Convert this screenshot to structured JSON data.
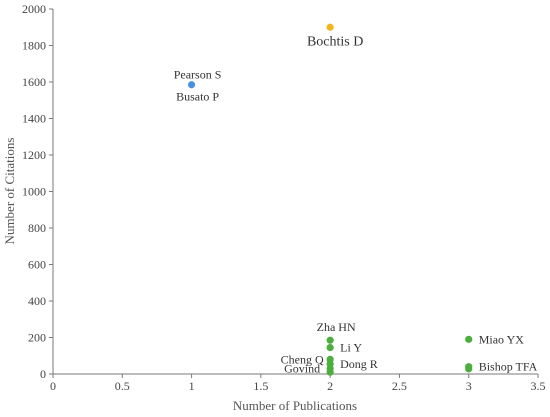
{
  "chart_data": {
    "type": "scatter",
    "xlabel": "Number of Publications",
    "ylabel": "Number of Citations",
    "xlim": [
      0,
      3.5
    ],
    "ylim": [
      0,
      2000
    ],
    "xticks": [
      0,
      0.5,
      1,
      1.5,
      2,
      2.5,
      3,
      3.5
    ],
    "xtick_labels": [
      "0",
      "0.5",
      "1",
      "1.5",
      "2",
      "2.5",
      "3",
      "3.5"
    ],
    "yticks": [
      0,
      200,
      400,
      600,
      800,
      1000,
      1200,
      1400,
      1600,
      1800,
      2000
    ],
    "ytick_labels": [
      "0",
      "200",
      "400",
      "600",
      "800",
      "1000",
      "1200",
      "1400",
      "1600",
      "1800",
      "2000"
    ],
    "grid": false,
    "legend": false,
    "colors": {
      "orange": "#f2b51c",
      "blue": "#4a90e2",
      "green": "#4caf3d"
    },
    "points": [
      {
        "x": 2,
        "y": 1900,
        "color": "orange",
        "labels": [
          "Bochtis D"
        ],
        "label_pos": "below",
        "big": true
      },
      {
        "x": 1,
        "y": 1585,
        "color": "blue",
        "labels": [
          "Pearson S",
          "Busato P"
        ],
        "label_pos": "above-below"
      },
      {
        "x": 2,
        "y": 185,
        "color": "green",
        "labels": [
          "Zha HN"
        ],
        "label_pos": "above"
      },
      {
        "x": 2,
        "y": 145,
        "color": "green",
        "labels": [
          "Li Y"
        ],
        "label_pos": "right"
      },
      {
        "x": 2,
        "y": 80,
        "color": "green",
        "labels": [
          "Cheng Q"
        ],
        "label_pos": "left"
      },
      {
        "x": 2,
        "y": 55,
        "color": "green",
        "labels": [
          "Dong R"
        ],
        "label_pos": "right"
      },
      {
        "x": 2,
        "y": 30,
        "color": "green",
        "labels": [
          "Govind"
        ],
        "label_pos": "left"
      },
      {
        "x": 2,
        "y": 10,
        "color": "green",
        "labels": [],
        "label_pos": "none"
      },
      {
        "x": 3,
        "y": 190,
        "color": "green",
        "labels": [
          "Miao YX"
        ],
        "label_pos": "right"
      },
      {
        "x": 3,
        "y": 40,
        "color": "green",
        "labels": [
          "Bishop TFA"
        ],
        "label_pos": "right"
      },
      {
        "x": 3,
        "y": 28,
        "color": "green",
        "labels": [],
        "label_pos": "none"
      }
    ]
  }
}
